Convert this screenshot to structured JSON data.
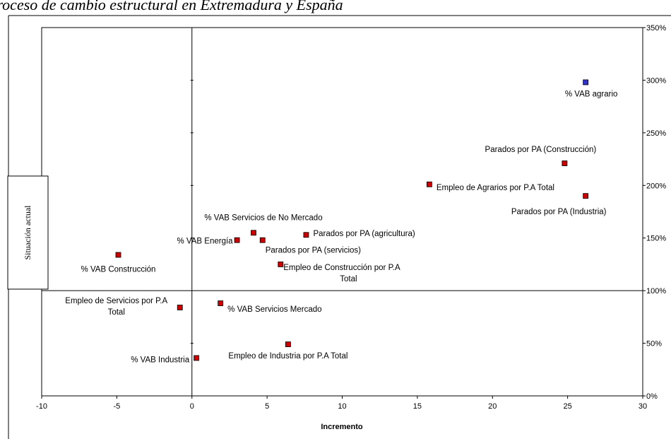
{
  "chart_data": {
    "type": "scatter",
    "title": "Proceso de cambio estructural en Extremadura y España",
    "xlabel": "Incremento",
    "ylabel": "Situación actual",
    "xlim": [
      -10,
      30
    ],
    "ylim": [
      0,
      350
    ],
    "x_ticks": [
      "-10",
      "-5",
      "0",
      "5",
      "10",
      "15",
      "20",
      "25",
      "30"
    ],
    "y_ticks": [
      "0%",
      "50%",
      "100%",
      "150%",
      "200%",
      "250%",
      "300%",
      "350%"
    ],
    "grid": false,
    "reference_lines": {
      "x": 0,
      "y": 100
    },
    "colors": {
      "marker": "#cc0000",
      "marker_highlight": "#3333cc"
    },
    "points": [
      {
        "label": "% VAB agrario",
        "x": 26.2,
        "y": 298,
        "highlight": true
      },
      {
        "label": "Parados por PA (Construcción)",
        "x": 24.8,
        "y": 221
      },
      {
        "label": "Empleo de Agrarios por P.A Total",
        "x": 15.8,
        "y": 201
      },
      {
        "label": "Parados por PA (Industria)",
        "x": 26.2,
        "y": 190
      },
      {
        "label": "% VAB Servicios de No Mercado",
        "x": 4.1,
        "y": 155
      },
      {
        "label": "Parados por PA (agricultura)",
        "x": 7.6,
        "y": 153
      },
      {
        "label": "% VAB Energía",
        "x": 3.0,
        "y": 148
      },
      {
        "label": "Parados por PA (servicios)",
        "x": 4.7,
        "y": 148
      },
      {
        "label": "% VAB Construcción",
        "x": -4.9,
        "y": 134
      },
      {
        "label": "Empleo de Construcción por P.A Total",
        "x": 5.9,
        "y": 125
      },
      {
        "label": "Empleo de Servicios por P.A Total",
        "x": -0.8,
        "y": 84
      },
      {
        "label": "% VAB Servicios Mercado",
        "x": 1.9,
        "y": 88
      },
      {
        "label": "Empleo de Industria por P.A Total",
        "x": 6.4,
        "y": 49
      },
      {
        "label": "% VAB Industria",
        "x": 0.3,
        "y": 36
      }
    ]
  }
}
